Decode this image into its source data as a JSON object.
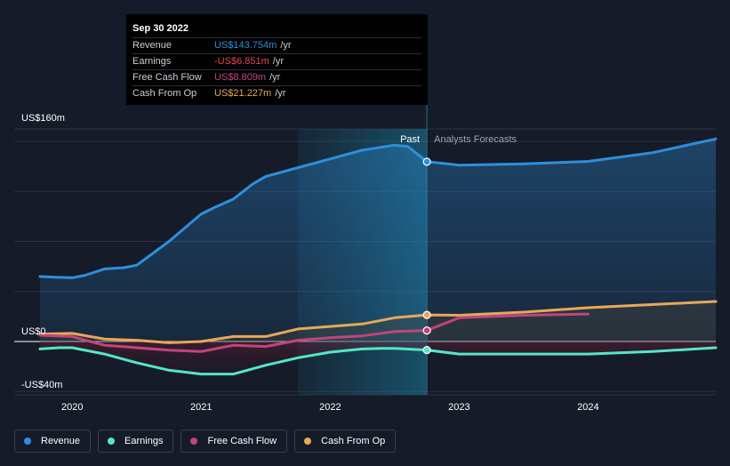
{
  "chart_data": {
    "type": "line",
    "y_axis": {
      "ticks": [
        {
          "value": 160,
          "label": "US$160m"
        },
        {
          "value": 0,
          "label": "US$0"
        },
        {
          "value": -40,
          "label": "-US$40m"
        }
      ],
      "ylim": [
        -40,
        160
      ]
    },
    "x_axis": {
      "ticks": [
        {
          "value": 2020,
          "label": "2020"
        },
        {
          "value": 2021,
          "label": "2021"
        },
        {
          "value": 2022,
          "label": "2022"
        },
        {
          "value": 2023,
          "label": "2023"
        },
        {
          "value": 2024,
          "label": "2024"
        }
      ],
      "xlim": [
        2019.55,
        2024.99
      ]
    },
    "regions": {
      "past_label": "Past",
      "forecast_label": "Analysts Forecasts",
      "divider_x": 2022.75,
      "highlight_start_x": 2021.75
    },
    "series": [
      {
        "name": "Revenue",
        "color": "#2e8fdc",
        "points": [
          [
            2019.75,
            52
          ],
          [
            2019.85,
            51.5
          ],
          [
            2020.0,
            51
          ],
          [
            2020.1,
            53
          ],
          [
            2020.25,
            58
          ],
          [
            2020.4,
            59
          ],
          [
            2020.5,
            61
          ],
          [
            2020.75,
            80
          ],
          [
            2021.0,
            102
          ],
          [
            2021.1,
            107
          ],
          [
            2021.25,
            114
          ],
          [
            2021.4,
            126
          ],
          [
            2021.5,
            132
          ],
          [
            2021.75,
            139
          ],
          [
            2022.0,
            146
          ],
          [
            2022.25,
            153
          ],
          [
            2022.5,
            157
          ],
          [
            2022.6,
            156
          ],
          [
            2022.75,
            143.754
          ],
          [
            2023.0,
            141
          ],
          [
            2023.5,
            142
          ],
          [
            2024.0,
            144
          ],
          [
            2024.5,
            151
          ],
          [
            2024.99,
            162
          ]
        ],
        "forecast_from": 2022.75
      },
      {
        "name": "Earnings",
        "color": "#55e6c5",
        "points": [
          [
            2019.75,
            -6
          ],
          [
            2019.9,
            -5
          ],
          [
            2020.0,
            -5
          ],
          [
            2020.25,
            -10
          ],
          [
            2020.5,
            -17
          ],
          [
            2020.75,
            -23
          ],
          [
            2021.0,
            -26
          ],
          [
            2021.25,
            -26
          ],
          [
            2021.5,
            -19
          ],
          [
            2021.75,
            -13
          ],
          [
            2022.0,
            -8.5
          ],
          [
            2022.25,
            -6
          ],
          [
            2022.4,
            -5.5
          ],
          [
            2022.5,
            -5.5
          ],
          [
            2022.75,
            -6.851
          ],
          [
            2023.0,
            -10
          ],
          [
            2023.5,
            -10
          ],
          [
            2024.0,
            -10
          ],
          [
            2024.5,
            -8
          ],
          [
            2024.99,
            -5
          ]
        ],
        "forecast_from": 2022.75
      },
      {
        "name": "Free Cash Flow",
        "color": "#c1457c",
        "points": [
          [
            2019.75,
            5
          ],
          [
            2020.0,
            4
          ],
          [
            2020.1,
            1
          ],
          [
            2020.25,
            -3
          ],
          [
            2020.5,
            -5
          ],
          [
            2020.75,
            -7
          ],
          [
            2021.0,
            -8
          ],
          [
            2021.25,
            -3
          ],
          [
            2021.5,
            -4
          ],
          [
            2021.75,
            1
          ],
          [
            2022.0,
            3
          ],
          [
            2022.25,
            4.5
          ],
          [
            2022.5,
            8
          ],
          [
            2022.75,
            8.809
          ],
          [
            2023.0,
            19
          ],
          [
            2023.5,
            21
          ],
          [
            2024.0,
            22
          ]
        ],
        "forecast_from": 2022.75
      },
      {
        "name": "Cash From Op",
        "color": "#e8a85a",
        "points": [
          [
            2019.75,
            6
          ],
          [
            2020.0,
            6.5
          ],
          [
            2020.25,
            2
          ],
          [
            2020.5,
            1
          ],
          [
            2020.75,
            -1
          ],
          [
            2021.0,
            0
          ],
          [
            2021.25,
            4
          ],
          [
            2021.5,
            4
          ],
          [
            2021.75,
            10
          ],
          [
            2022.0,
            12
          ],
          [
            2022.25,
            14
          ],
          [
            2022.5,
            19
          ],
          [
            2022.75,
            21.227
          ],
          [
            2023.0,
            21
          ],
          [
            2023.5,
            23.5
          ],
          [
            2024.0,
            27
          ],
          [
            2024.99,
            32
          ]
        ],
        "forecast_from": 2022.75
      }
    ]
  },
  "tooltip": {
    "date": "Sep 30 2022",
    "rows": [
      {
        "name": "Revenue",
        "value": "US$143.754m",
        "unit": "/yr",
        "color": "#2e8fdc"
      },
      {
        "name": "Earnings",
        "value": "-US$6.851m",
        "unit": "/yr",
        "color": "#e5484d"
      },
      {
        "name": "Free Cash Flow",
        "value": "US$8.809m",
        "unit": "/yr",
        "color": "#c1457c"
      },
      {
        "name": "Cash From Op",
        "value": "US$21.227m",
        "unit": "/yr",
        "color": "#e8a85a"
      }
    ]
  },
  "legend": [
    {
      "label": "Revenue",
      "color": "#2e8fdc"
    },
    {
      "label": "Earnings",
      "color": "#55e6c5"
    },
    {
      "label": "Free Cash Flow",
      "color": "#c1457c"
    },
    {
      "label": "Cash From Op",
      "color": "#e8a85a"
    }
  ]
}
